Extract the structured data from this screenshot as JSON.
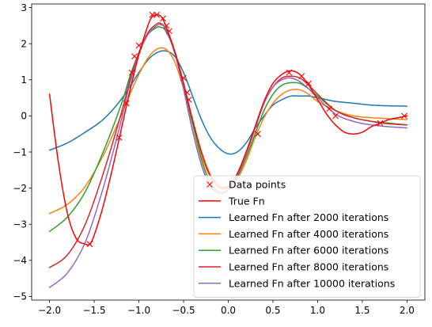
{
  "chart_data": {
    "type": "line",
    "title": "",
    "xlabel": "",
    "ylabel": "",
    "xlim": [
      -2.2,
      2.2
    ],
    "ylim": [
      -5.1,
      3.1
    ],
    "xticks": [
      -2.0,
      -1.5,
      -1.0,
      -0.5,
      0.0,
      0.5,
      1.0,
      1.5,
      2.0
    ],
    "xtick_labels": [
      "−2.0",
      "−1.5",
      "−1.0",
      "−0.5",
      "0.0",
      "0.5",
      "1.0",
      "1.5",
      "2.0"
    ],
    "yticks": [
      -5,
      -4,
      -3,
      -2,
      -1,
      0,
      1,
      2,
      3
    ],
    "ytick_labels": [
      "−5",
      "−4",
      "−3",
      "−2",
      "−1",
      "0",
      "1",
      "2",
      "3"
    ],
    "grid": false,
    "legend_position": "lower-right",
    "data_points": {
      "name": "Data points",
      "color": "#ff0000",
      "marker": "x",
      "x": [
        -1.55,
        -1.22,
        -1.14,
        -1.08,
        -1.05,
        -1.0,
        -0.85,
        -0.8,
        -0.73,
        -0.69,
        -0.66,
        -0.5,
        -0.46,
        -0.44,
        0.33,
        0.68,
        0.82,
        0.9,
        1.13,
        1.2,
        1.7,
        1.97
      ],
      "y": [
        -3.55,
        -0.6,
        0.35,
        1.2,
        1.65,
        1.95,
        2.8,
        2.8,
        2.7,
        2.5,
        2.35,
        1.05,
        0.65,
        0.45,
        -0.5,
        1.2,
        1.1,
        0.9,
        0.2,
        0.0,
        -0.2,
        0.0
      ]
    },
    "series": [
      {
        "name": "True Fn",
        "color": "#ff0000",
        "x": [
          -2.0,
          -1.9,
          -1.8,
          -1.7,
          -1.6,
          -1.55,
          -1.5,
          -1.4,
          -1.3,
          -1.2,
          -1.1,
          -1.0,
          -0.9,
          -0.85,
          -0.8,
          -0.75,
          -0.7,
          -0.6,
          -0.5,
          -0.4,
          -0.3,
          -0.2,
          -0.1,
          0.0,
          0.1,
          0.2,
          0.3,
          0.4,
          0.5,
          0.6,
          0.7,
          0.8,
          0.9,
          1.0,
          1.1,
          1.2,
          1.3,
          1.4,
          1.5,
          1.6,
          1.7,
          1.8,
          1.9,
          2.0
        ],
        "y": [
          0.6,
          -1.3,
          -2.7,
          -3.4,
          -3.55,
          -3.55,
          -3.3,
          -2.5,
          -1.5,
          -0.4,
          0.7,
          1.7,
          2.5,
          2.75,
          2.8,
          2.75,
          2.5,
          1.8,
          0.9,
          -0.1,
          -1.0,
          -1.65,
          -1.95,
          -1.95,
          -1.6,
          -1.0,
          -0.3,
          0.4,
          0.9,
          1.15,
          1.25,
          1.15,
          0.85,
          0.45,
          0.05,
          -0.25,
          -0.45,
          -0.5,
          -0.45,
          -0.3,
          -0.2,
          -0.1,
          -0.05,
          0.0
        ]
      },
      {
        "name": "Learned Fn after 2000 iterations",
        "color": "#1f77b4",
        "x": [
          -2.0,
          -1.8,
          -1.6,
          -1.4,
          -1.2,
          -1.0,
          -0.9,
          -0.8,
          -0.7,
          -0.6,
          -0.5,
          -0.4,
          -0.3,
          -0.2,
          -0.1,
          0.0,
          0.1,
          0.2,
          0.3,
          0.4,
          0.5,
          0.6,
          0.7,
          0.8,
          0.9,
          1.0,
          1.1,
          1.2,
          1.4,
          1.6,
          1.8,
          2.0
        ],
        "y": [
          -0.95,
          -0.75,
          -0.45,
          -0.1,
          0.45,
          1.2,
          1.55,
          1.75,
          1.8,
          1.65,
          1.2,
          0.55,
          -0.1,
          -0.6,
          -0.9,
          -1.05,
          -1.0,
          -0.75,
          -0.35,
          0.0,
          0.3,
          0.45,
          0.55,
          0.55,
          0.55,
          0.5,
          0.45,
          0.4,
          0.35,
          0.3,
          0.28,
          0.27
        ]
      },
      {
        "name": "Learned Fn after 4000 iterations",
        "color": "#ff7f0e",
        "x": [
          -2.0,
          -1.8,
          -1.6,
          -1.4,
          -1.2,
          -1.1,
          -1.0,
          -0.9,
          -0.8,
          -0.7,
          -0.6,
          -0.5,
          -0.4,
          -0.3,
          -0.2,
          -0.1,
          0.0,
          0.1,
          0.2,
          0.3,
          0.4,
          0.5,
          0.6,
          0.7,
          0.8,
          0.9,
          1.0,
          1.2,
          1.4,
          1.6,
          1.8,
          2.0
        ],
        "y": [
          -2.7,
          -2.45,
          -1.95,
          -1.1,
          0.0,
          0.6,
          1.15,
          1.6,
          1.85,
          1.85,
          1.5,
          0.75,
          -0.2,
          -1.1,
          -1.7,
          -2.0,
          -2.0,
          -1.75,
          -1.25,
          -0.6,
          -0.05,
          0.35,
          0.6,
          0.72,
          0.72,
          0.6,
          0.4,
          0.15,
          0.0,
          -0.05,
          -0.08,
          -0.1
        ]
      },
      {
        "name": "Learned Fn after 6000 iterations",
        "color": "#2ca02c",
        "x": [
          -2.0,
          -1.8,
          -1.6,
          -1.4,
          -1.2,
          -1.1,
          -1.0,
          -0.9,
          -0.8,
          -0.75,
          -0.7,
          -0.6,
          -0.5,
          -0.4,
          -0.3,
          -0.2,
          -0.1,
          0.0,
          0.1,
          0.2,
          0.3,
          0.4,
          0.5,
          0.6,
          0.7,
          0.8,
          0.9,
          1.0,
          1.2,
          1.4,
          1.6,
          1.8,
          2.0
        ],
        "y": [
          -3.2,
          -2.8,
          -2.1,
          -1.0,
          0.3,
          1.1,
          1.75,
          2.25,
          2.45,
          2.45,
          2.35,
          1.8,
          0.9,
          -0.2,
          -1.2,
          -1.85,
          -2.1,
          -2.05,
          -1.7,
          -1.15,
          -0.5,
          0.15,
          0.6,
          0.85,
          0.92,
          0.9,
          0.75,
          0.55,
          0.15,
          -0.05,
          -0.15,
          -0.2,
          -0.25
        ]
      },
      {
        "name": "Learned Fn after 8000 iterations",
        "color": "#d62728",
        "x": [
          -2.0,
          -1.8,
          -1.6,
          -1.4,
          -1.2,
          -1.1,
          -1.0,
          -0.9,
          -0.8,
          -0.75,
          -0.7,
          -0.6,
          -0.5,
          -0.4,
          -0.3,
          -0.2,
          -0.1,
          0.0,
          0.1,
          0.2,
          0.3,
          0.4,
          0.5,
          0.6,
          0.7,
          0.8,
          0.9,
          1.0,
          1.2,
          1.4,
          1.6,
          1.8,
          2.0
        ],
        "y": [
          -4.2,
          -3.85,
          -3.0,
          -1.6,
          0.05,
          1.0,
          1.75,
          2.3,
          2.55,
          2.55,
          2.4,
          1.75,
          0.75,
          -0.4,
          -1.35,
          -1.95,
          -2.15,
          -2.05,
          -1.65,
          -1.05,
          -0.35,
          0.35,
          0.8,
          1.05,
          1.1,
          1.05,
          0.85,
          0.6,
          0.15,
          -0.05,
          -0.15,
          -0.22,
          -0.25
        ]
      },
      {
        "name": "Learned Fn after 10000 iterations",
        "color": "#9467bd",
        "x": [
          -2.0,
          -1.8,
          -1.6,
          -1.4,
          -1.2,
          -1.1,
          -1.0,
          -0.9,
          -0.8,
          -0.75,
          -0.7,
          -0.6,
          -0.5,
          -0.4,
          -0.3,
          -0.2,
          -0.1,
          0.0,
          0.1,
          0.2,
          0.3,
          0.4,
          0.5,
          0.6,
          0.7,
          0.8,
          0.9,
          1.0,
          1.2,
          1.4,
          1.6,
          1.8,
          2.0
        ],
        "y": [
          -4.75,
          -4.35,
          -3.5,
          -2.0,
          -0.15,
          0.9,
          1.7,
          2.25,
          2.5,
          2.52,
          2.4,
          1.75,
          0.75,
          -0.4,
          -1.35,
          -1.95,
          -2.15,
          -2.05,
          -1.65,
          -1.05,
          -0.35,
          0.35,
          0.8,
          1.0,
          1.05,
          0.95,
          0.75,
          0.5,
          0.05,
          -0.15,
          -0.25,
          -0.3,
          -0.33
        ]
      }
    ]
  }
}
